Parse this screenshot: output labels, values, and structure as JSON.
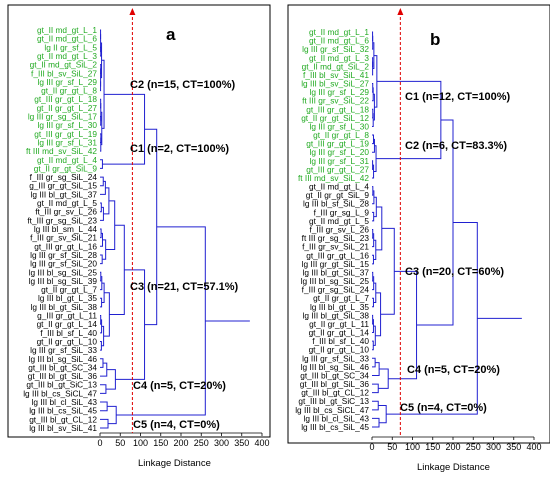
{
  "chart_data": [
    {
      "type": "dendrogram",
      "panel_letter": "a",
      "xlabel": "Linkage Distance",
      "xlim": [
        0,
        400
      ],
      "xticks": [
        0,
        50,
        100,
        150,
        200,
        250,
        300,
        350,
        400
      ],
      "cutoff_distance": 80,
      "clusters": [
        {
          "label": "C2 (n=15, CT=100%)",
          "name": "C2",
          "n": 15,
          "CT_percent": 100,
          "leaf_range": [
            0,
            14
          ],
          "highlight": true
        },
        {
          "label": "C1 (n=2, CT=100%)",
          "name": "C1",
          "n": 2,
          "CT_percent": 100,
          "leaf_range": [
            15,
            16
          ],
          "highlight": true
        },
        {
          "label": "C3 (n=21, CT=57.1%)",
          "name": "C3",
          "n": 21,
          "CT_percent": 57.1,
          "leaf_range": [
            17,
            37
          ],
          "highlight": false
        },
        {
          "label": "C4 (n=5, CT=20%)",
          "name": "C4",
          "n": 5,
          "CT_percent": 20,
          "leaf_range": [
            38,
            42
          ],
          "highlight": false
        },
        {
          "label": "C5 (n=4, CT=0%)",
          "name": "C5",
          "n": 4,
          "CT_percent": 0,
          "leaf_range": [
            43,
            46
          ],
          "highlight": false
        }
      ],
      "leaves": [
        "gt_II md_gt_L_1",
        "gt_II md_gt_L_6",
        "lg II gr_sf_L_5",
        "gt_II md_gt_L_3",
        "gt_II md_gt_SiL_2",
        "f_III bl_sv_SiL_27",
        "lg III gr_sf_L_29",
        "gt_II gr_gt_L_8",
        "gt_III gr_gt_L_18",
        "gt_II gr_gt_L_27",
        "lg III gr_sg_SiL_17",
        "lg III gr_sf_L_30",
        "gt_III gr_gt_L_19",
        "lg III gr_sf_L_31",
        "ft III md_sv_SiL_42",
        "gt_II md_gt_L_4",
        "gt_II gr_gt_SiL_9",
        "f_III gr_sg_SiL_24",
        "g_III gr_gt_SiL_15",
        "lg III bl_gt_SiL_37",
        "gt_II md_gt_L_5",
        "ft_III gr_sv_L_26",
        "ft_III gr_sg_SiL_23",
        "lg III bl_sm_L_44",
        "f_III gr_sv_SiL_21",
        "gt_III gr_gt_L_16",
        "lg III gr_sf_SiL_28",
        "lg III gr_sf_SiL_20",
        "lg III bl_sg_SiL_25",
        "lg III bl_sg_SiL_39",
        "gt_II gr_gt_L_7",
        "lg III bl_gt_L_35",
        "lg III bl_gt_SiL_38",
        "g_III gr_gt_L_11",
        "gt_II gr_gt_L_14",
        "f_III bl_sf_L_40",
        "gt_II gr_gt_L_10",
        "lg III gr_sf_SiL_33",
        "lg III bl_sg_SiL_46",
        "gt_III bl_gt_SC_34",
        "gt_III bl_gt_SiL_36",
        "gt_III bl_gt_SiC_13",
        "lg III bl_cs_SiCL_47",
        "lg III bl_cl_SiL_43",
        "lg III bl_cs_SiL_45",
        "gt_III bl_gt_CL_12",
        "lg III bl_sv_SiL_41"
      ]
    },
    {
      "type": "dendrogram",
      "panel_letter": "b",
      "xlabel": "Linkage Distance",
      "xlim": [
        0,
        400
      ],
      "xticks": [
        0,
        50,
        100,
        150,
        200,
        250,
        300,
        350,
        400
      ],
      "cutoff_distance": 70,
      "clusters": [
        {
          "label": "C1 (n=12, CT=100%)",
          "name": "C1",
          "n": 12,
          "CT_percent": 100,
          "leaf_range": [
            0,
            11
          ],
          "highlight": true
        },
        {
          "label": "C2 (n=6, CT=83.3%)",
          "name": "C2",
          "n": 6,
          "CT_percent": 83.3,
          "leaf_range": [
            12,
            17
          ],
          "highlight": true
        },
        {
          "label": "C3 (n=20, CT=60%)",
          "name": "C3",
          "n": 20,
          "CT_percent": 60,
          "leaf_range": [
            18,
            37
          ],
          "highlight": false
        },
        {
          "label": "C4 (n=5, CT=20%)",
          "name": "C4",
          "n": 5,
          "CT_percent": 20,
          "leaf_range": [
            38,
            42
          ],
          "highlight": false
        },
        {
          "label": "C5 (n=4, CT=0%)",
          "name": "C5",
          "n": 4,
          "CT_percent": 0,
          "leaf_range": [
            43,
            46
          ],
          "highlight": false
        }
      ],
      "leaves": [
        "gt_II md_gt_L_1",
        "gt_II md_gt_L_6",
        "lg III gr_sf_SiL_32",
        "gt_II md_gt_L_3",
        "gt_II md_gt_SiL_2",
        "f_III bl_sv_SiL_41",
        "lg III bl_sv_SiL_27",
        "lg III gr_sf_L_29",
        "ft III gr_sv_SiL_22",
        "gt_III gr_gt_L_18",
        "gt_II gr_gt_SiL_12",
        "lg III gr_sf_L_30",
        "gt_II gr_gt_L_8",
        "gt_III gr_gt_L_19",
        "lg III gr_sf_L_20",
        "lg III gr_sf_L_31",
        "gt_III gr_gt_L_27",
        "ft III md_sv_SiL_42",
        "gt_II md_gt_L_4",
        "gt_II gr_gt_SiL_9",
        "lg III bl_sf_SiL_28",
        "f_III gr_sg_L_9",
        "gt_II md_gt_L_5",
        "f_III gr_sv_L_26",
        "ft III gr_sg_SiL_23",
        "f_III gr_sv_SiL_21",
        "gt_III gr_gt_L_16",
        "lg III gr_gt_SiL_15",
        "lg III bl_gt_SiL_37",
        "lg III bl_sg_SiL_25",
        "f_III gr_sg_SiL_24",
        "gt_II gr_gt_L_7",
        "lg III bl_gt_L_35",
        "lg III bl_gt_SiL_38",
        "gt_II gr_gt_L_11",
        "gt_II gr_gt_L_14",
        "f_III bl_sf_L_40",
        "gt_II gr_gt_L_10",
        "lg III gr_sf_SiL_33",
        "lg III bl_sg_SiL_46",
        "gt_III bl_gt_SC_34",
        "gt_III bl_gt_SiL_36",
        "gt_III bl_gt_CL_12",
        "gt_III bl_gt_SiC_13",
        "lg III bl_cs_SiCL_47",
        "lg III bl_cl_SiL_43",
        "lg III bl_cs_SiL_45"
      ]
    }
  ],
  "colors": {
    "highlight_leaf": "#22aa22",
    "normal_leaf": "#000000",
    "dendrogram": "#2020d0",
    "cutoff": "#e00000"
  }
}
